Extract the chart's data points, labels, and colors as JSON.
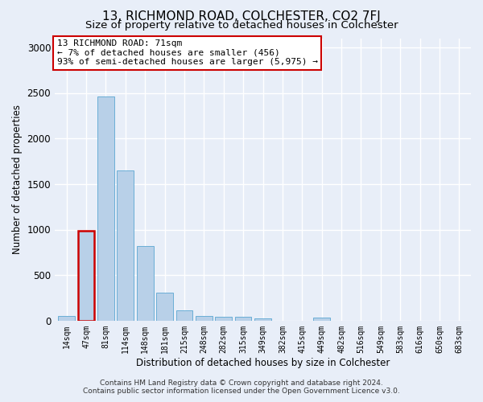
{
  "title": "13, RICHMOND ROAD, COLCHESTER, CO2 7FJ",
  "subtitle": "Size of property relative to detached houses in Colchester",
  "xlabel": "Distribution of detached houses by size in Colchester",
  "ylabel": "Number of detached properties",
  "footer_line1": "Contains HM Land Registry data © Crown copyright and database right 2024.",
  "footer_line2": "Contains public sector information licensed under the Open Government Licence v3.0.",
  "categories": [
    "14sqm",
    "47sqm",
    "81sqm",
    "114sqm",
    "148sqm",
    "181sqm",
    "215sqm",
    "248sqm",
    "282sqm",
    "315sqm",
    "349sqm",
    "382sqm",
    "415sqm",
    "449sqm",
    "482sqm",
    "516sqm",
    "549sqm",
    "583sqm",
    "616sqm",
    "650sqm",
    "683sqm"
  ],
  "values": [
    55,
    990,
    2460,
    1650,
    820,
    305,
    115,
    55,
    40,
    40,
    25,
    0,
    0,
    30,
    0,
    0,
    0,
    0,
    0,
    0,
    0
  ],
  "bar_color": "#b8d0e8",
  "bar_edgecolor": "#6aaed6",
  "highlight_bar_index": 1,
  "highlight_bar_color": "#b8d0e8",
  "highlight_bar_edgecolor": "#cc0000",
  "annotation_text": "13 RICHMOND ROAD: 71sqm\n← 7% of detached houses are smaller (456)\n93% of semi-detached houses are larger (5,975) →",
  "annotation_box_edgecolor": "#cc0000",
  "annotation_box_facecolor": "#ffffff",
  "ylim": [
    0,
    3100
  ],
  "yticks": [
    0,
    500,
    1000,
    1500,
    2000,
    2500,
    3000
  ],
  "bg_color": "#e8eef8",
  "plot_bg_color": "#e8eef8",
  "grid_color": "#ffffff",
  "title_fontsize": 11,
  "subtitle_fontsize": 9.5
}
